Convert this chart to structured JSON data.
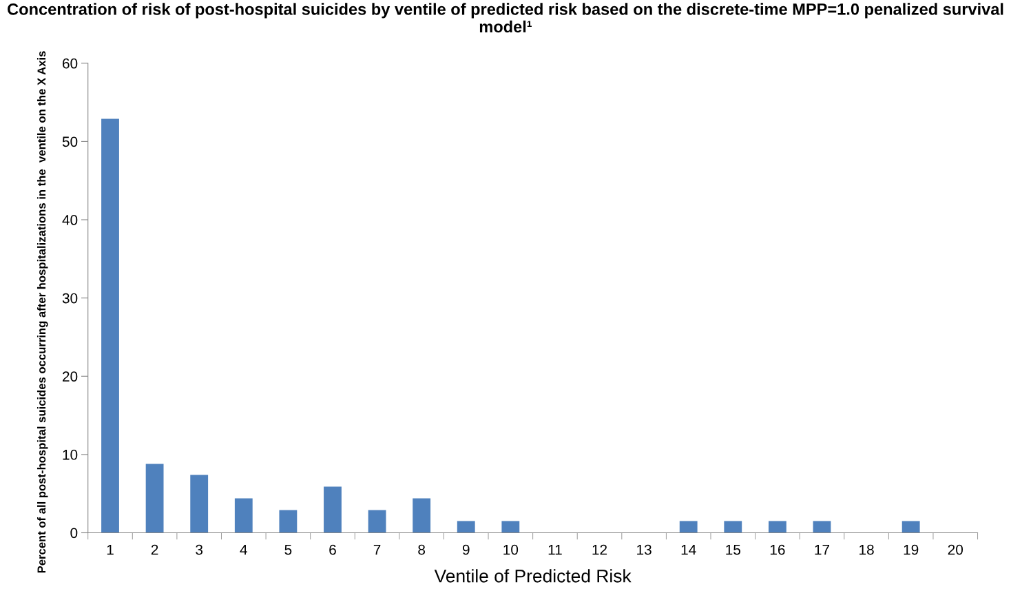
{
  "chart_data": {
    "type": "bar",
    "title": "Concentration of risk of post-hospital suicides by ventile of predicted risk based on the discrete-time MPP=1.0 penalized survival model¹",
    "xlabel": "Ventile of Predicted Risk",
    "ylabel": "Percent of all post-hospital suicides occurring after hospitalizations in the  ventile on the X Axis",
    "categories": [
      "1",
      "2",
      "3",
      "4",
      "5",
      "6",
      "7",
      "8",
      "9",
      "10",
      "11",
      "12",
      "13",
      "14",
      "15",
      "16",
      "17",
      "18",
      "19",
      "20"
    ],
    "values": [
      52.9,
      8.8,
      7.4,
      4.4,
      2.9,
      5.9,
      2.9,
      4.4,
      1.5,
      1.5,
      0,
      0,
      0,
      1.5,
      1.5,
      1.5,
      1.5,
      0,
      1.5,
      0
    ],
    "color": "#4f81bd",
    "ylim": [
      0,
      60
    ],
    "yticks": [
      0,
      10,
      20,
      30,
      40,
      50,
      60
    ],
    "grid": false,
    "legend": false
  }
}
